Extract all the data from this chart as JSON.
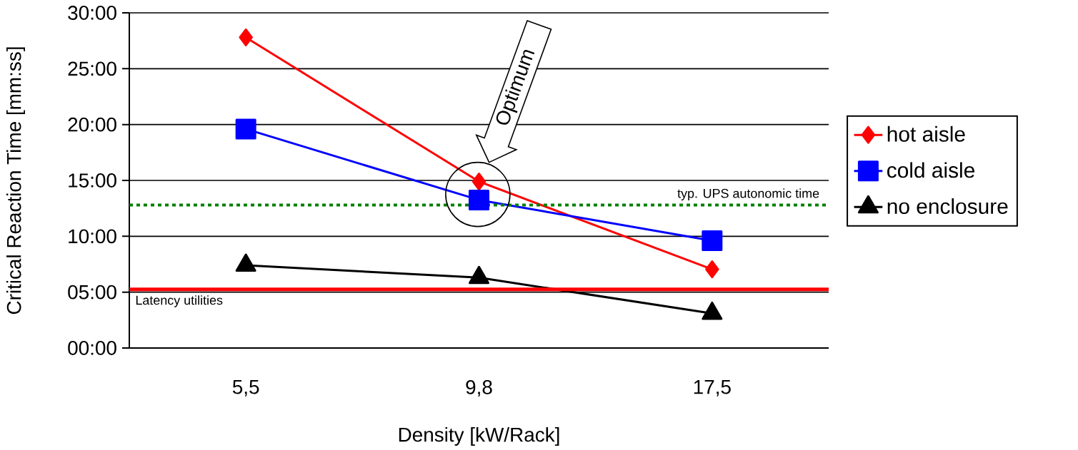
{
  "chart_data": {
    "type": "line",
    "xlabel": "Density [kW/Rack]",
    "ylabel": "Critical Reaction Time [mm:ss]",
    "categories": [
      "5,5",
      "9,8",
      "17,5"
    ],
    "series": [
      {
        "name": "hot aisle",
        "color": "#ff0000",
        "marker": "diamond",
        "values": [
          27.8,
          14.9,
          7.05
        ]
      },
      {
        "name": "cold aisle",
        "color": "#0000ff",
        "marker": "square",
        "values": [
          19.6,
          13.25,
          9.6
        ]
      },
      {
        "name": "no enclosure",
        "color": "#000000",
        "marker": "triangle",
        "values": [
          7.4,
          6.3,
          3.1
        ]
      }
    ],
    "ylim": [
      0,
      30
    ],
    "yticks": [
      {
        "value": 0,
        "label": "00:00"
      },
      {
        "value": 5,
        "label": "05:00"
      },
      {
        "value": 10,
        "label": "10:00"
      },
      {
        "value": 15,
        "label": "15:00"
      },
      {
        "value": 20,
        "label": "20:00"
      },
      {
        "value": 25,
        "label": "25:00"
      },
      {
        "value": 30,
        "label": "30:00"
      }
    ],
    "grid": "y",
    "legend": "right",
    "line_style": "solid",
    "ref_lines": [
      {
        "axis": "y",
        "value": 12.8,
        "label": "typ. UPS autonomic time",
        "color": "#008000",
        "line_style": "dotted"
      },
      {
        "axis": "y",
        "value": 5.25,
        "label": "Latency utilities",
        "color": "#ff0000",
        "line_style": "solid"
      }
    ],
    "annotations": [
      "Optimum"
    ]
  }
}
